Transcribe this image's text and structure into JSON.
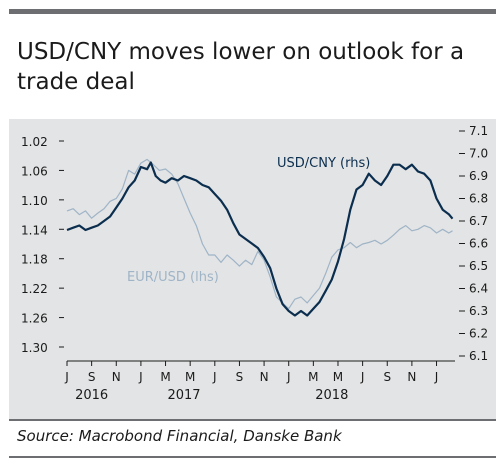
{
  "title": "USD/CNY moves lower on outlook for a trade deal",
  "source": "Source: Macrobond Financial, Danske Bank",
  "colors": {
    "background": "#e3e4e5",
    "usd_cny": "#0b2e4f",
    "eur_usd": "#9fb4c7",
    "rule": "#6d6e71"
  },
  "chart_data": {
    "type": "line",
    "annotations": [
      {
        "text": "USD/CNY (rhs)",
        "series": "USD/CNY (rhs)"
      },
      {
        "text": "EUR/USD (lhs)",
        "series": "EUR/USD (lhs)"
      }
    ],
    "x_ticks": [
      "J",
      "S",
      "N",
      "J",
      "M",
      "M",
      "J",
      "S",
      "N",
      "J",
      "M",
      "M",
      "J",
      "S",
      "N",
      "J"
    ],
    "x_years": [
      {
        "label": "2016",
        "month_index": 2
      },
      {
        "label": "2017",
        "month_index": 9.5
      },
      {
        "label": "2018",
        "month_index": 21.5
      }
    ],
    "x_unit": "months since Jul 2016",
    "xlim": [
      0,
      31.5
    ],
    "y_left": {
      "ticks": [
        "1.02",
        "1.06",
        "1.10",
        "1.14",
        "1.18",
        "1.22",
        "1.26",
        "1.30"
      ],
      "lim": [
        1.3,
        1.02
      ],
      "inverted": true
    },
    "y_right": {
      "ticks": [
        "7.1",
        "7.0",
        "6.9",
        "6.8",
        "6.7",
        "6.6",
        "6.5",
        "6.4",
        "6.3",
        "6.2",
        "6.1"
      ],
      "lim": [
        6.1,
        7.1
      ]
    },
    "series": [
      {
        "name": "USD/CNY (rhs)",
        "axis": "right",
        "points": [
          [
            0,
            6.66
          ],
          [
            0.5,
            6.67
          ],
          [
            1,
            6.68
          ],
          [
            1.5,
            6.66
          ],
          [
            2,
            6.67
          ],
          [
            2.5,
            6.68
          ],
          [
            3,
            6.7
          ],
          [
            3.5,
            6.72
          ],
          [
            4,
            6.76
          ],
          [
            4.5,
            6.8
          ],
          [
            5,
            6.85
          ],
          [
            5.5,
            6.88
          ],
          [
            6,
            6.94
          ],
          [
            6.5,
            6.93
          ],
          [
            6.8,
            6.96
          ],
          [
            7.2,
            6.9
          ],
          [
            7.6,
            6.88
          ],
          [
            8,
            6.87
          ],
          [
            8.5,
            6.89
          ],
          [
            9,
            6.88
          ],
          [
            9.5,
            6.9
          ],
          [
            10,
            6.89
          ],
          [
            10.5,
            6.88
          ],
          [
            11,
            6.86
          ],
          [
            11.5,
            6.85
          ],
          [
            12,
            6.82
          ],
          [
            12.5,
            6.79
          ],
          [
            13,
            6.75
          ],
          [
            13.5,
            6.69
          ],
          [
            14,
            6.64
          ],
          [
            14.5,
            6.62
          ],
          [
            15,
            6.6
          ],
          [
            15.5,
            6.58
          ],
          [
            16,
            6.54
          ],
          [
            16.5,
            6.49
          ],
          [
            17,
            6.4
          ],
          [
            17.5,
            6.33
          ],
          [
            18,
            6.3
          ],
          [
            18.5,
            6.28
          ],
          [
            19,
            6.3
          ],
          [
            19.5,
            6.28
          ],
          [
            20,
            6.31
          ],
          [
            20.5,
            6.34
          ],
          [
            21,
            6.39
          ],
          [
            21.5,
            6.44
          ],
          [
            22,
            6.52
          ],
          [
            22.5,
            6.62
          ],
          [
            23,
            6.75
          ],
          [
            23.5,
            6.84
          ],
          [
            24,
            6.86
          ],
          [
            24.5,
            6.91
          ],
          [
            25,
            6.88
          ],
          [
            25.5,
            6.86
          ],
          [
            26,
            6.9
          ],
          [
            26.5,
            6.95
          ],
          [
            27,
            6.95
          ],
          [
            27.5,
            6.93
          ],
          [
            28,
            6.95
          ],
          [
            28.5,
            6.92
          ],
          [
            29,
            6.91
          ],
          [
            29.5,
            6.88
          ],
          [
            30,
            6.8
          ],
          [
            30.5,
            6.75
          ],
          [
            31,
            6.73
          ],
          [
            31.3,
            6.71
          ]
        ]
      },
      {
        "name": "EUR/USD (lhs)",
        "axis": "left",
        "points": [
          [
            0,
            1.115
          ],
          [
            0.5,
            1.112
          ],
          [
            1,
            1.12
          ],
          [
            1.5,
            1.115
          ],
          [
            2,
            1.125
          ],
          [
            2.5,
            1.118
          ],
          [
            3,
            1.112
          ],
          [
            3.5,
            1.102
          ],
          [
            4,
            1.098
          ],
          [
            4.5,
            1.085
          ],
          [
            5,
            1.06
          ],
          [
            5.5,
            1.065
          ],
          [
            6,
            1.05
          ],
          [
            6.5,
            1.045
          ],
          [
            7,
            1.052
          ],
          [
            7.5,
            1.06
          ],
          [
            8,
            1.058
          ],
          [
            8.5,
            1.065
          ],
          [
            9,
            1.078
          ],
          [
            9.5,
            1.098
          ],
          [
            10,
            1.118
          ],
          [
            10.5,
            1.135
          ],
          [
            11,
            1.16
          ],
          [
            11.5,
            1.175
          ],
          [
            12,
            1.175
          ],
          [
            12.5,
            1.185
          ],
          [
            13,
            1.175
          ],
          [
            13.5,
            1.182
          ],
          [
            14,
            1.19
          ],
          [
            14.5,
            1.182
          ],
          [
            15,
            1.188
          ],
          [
            15.5,
            1.17
          ],
          [
            16,
            1.182
          ],
          [
            16.5,
            1.205
          ],
          [
            17,
            1.232
          ],
          [
            17.5,
            1.24
          ],
          [
            18,
            1.248
          ],
          [
            18.5,
            1.235
          ],
          [
            19,
            1.232
          ],
          [
            19.5,
            1.24
          ],
          [
            20,
            1.23
          ],
          [
            20.5,
            1.22
          ],
          [
            21,
            1.2
          ],
          [
            21.5,
            1.178
          ],
          [
            22,
            1.168
          ],
          [
            22.5,
            1.165
          ],
          [
            23,
            1.158
          ],
          [
            23.5,
            1.165
          ],
          [
            24,
            1.16
          ],
          [
            24.5,
            1.158
          ],
          [
            25,
            1.155
          ],
          [
            25.5,
            1.16
          ],
          [
            26,
            1.155
          ],
          [
            26.5,
            1.148
          ],
          [
            27,
            1.14
          ],
          [
            27.5,
            1.135
          ],
          [
            28,
            1.142
          ],
          [
            28.5,
            1.14
          ],
          [
            29,
            1.135
          ],
          [
            29.5,
            1.138
          ],
          [
            30,
            1.145
          ],
          [
            30.5,
            1.14
          ],
          [
            31,
            1.145
          ],
          [
            31.3,
            1.142
          ]
        ]
      }
    ]
  }
}
